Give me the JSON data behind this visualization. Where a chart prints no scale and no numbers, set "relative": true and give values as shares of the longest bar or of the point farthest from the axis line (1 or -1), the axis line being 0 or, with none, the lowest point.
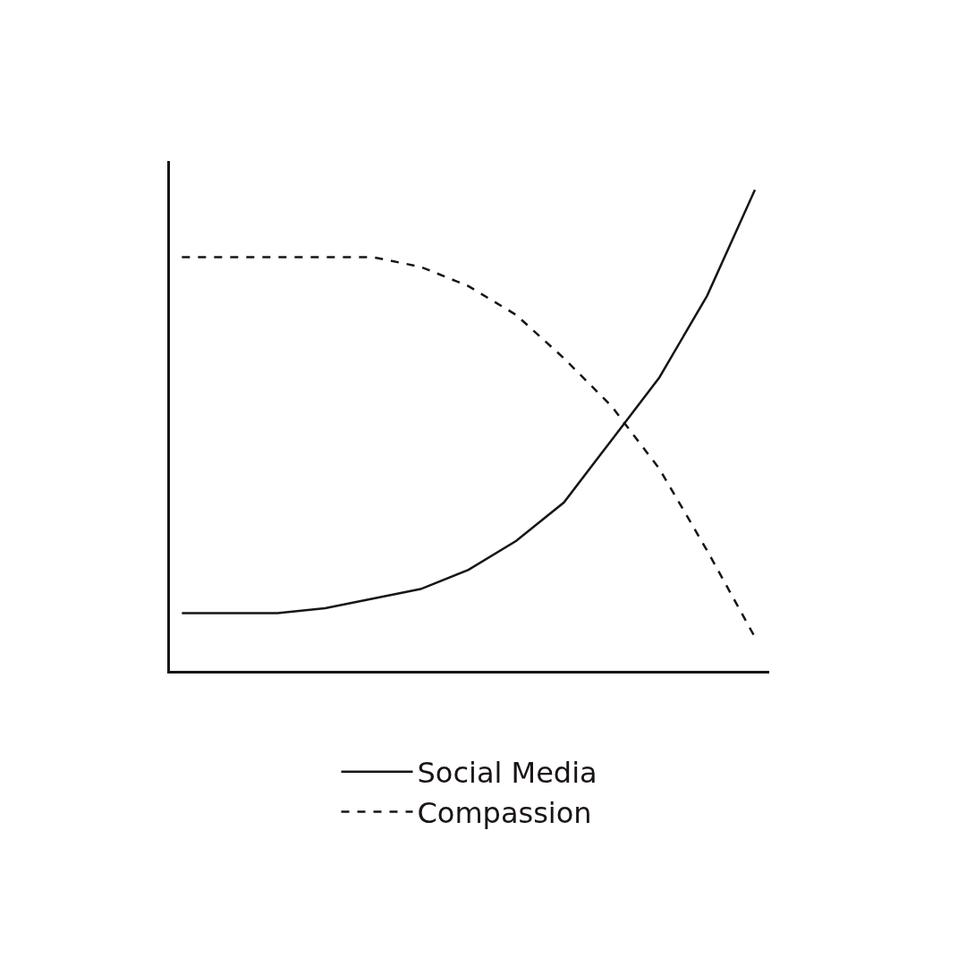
{
  "chart_data": {
    "type": "line",
    "relative": true,
    "categories": [
      null,
      null,
      null,
      null,
      null,
      null,
      null,
      null,
      null,
      null,
      null,
      null,
      null
    ],
    "series": [
      {
        "name": "Social Media",
        "color": "#1a1414",
        "line_style": "solid",
        "values": [
          0.12,
          0.12,
          0.12,
          0.13,
          0.15,
          0.17,
          0.21,
          0.27,
          0.35,
          0.48,
          0.61,
          0.78,
          1
        ]
      },
      {
        "name": "Compassion",
        "color": "#1a1414",
        "line_style": "dashed",
        "values": [
          0.86,
          0.86,
          0.86,
          0.86,
          0.86,
          0.84,
          0.8,
          0.74,
          0.65,
          0.55,
          0.42,
          0.25,
          0.07
        ]
      }
    ],
    "legend": "bottom",
    "marker": "none"
  }
}
